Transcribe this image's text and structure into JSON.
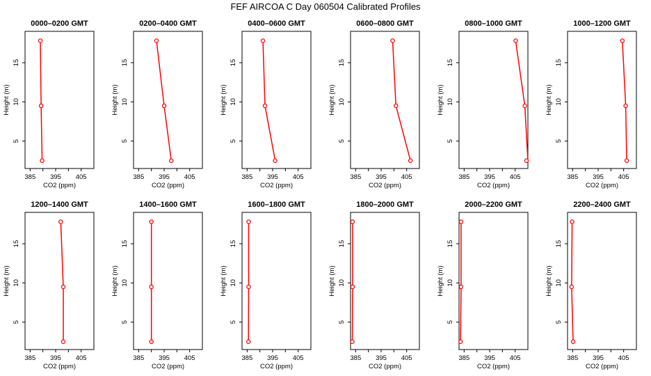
{
  "title": "FEF AIRCOA C  Day 060504  Calibrated Profiles",
  "colors": {
    "profile": "#ff0000",
    "axis": "#000000"
  },
  "chart_data": [
    {
      "type": "line",
      "title": "0000–0200 GMT",
      "xlabel": "CO2 (ppm)",
      "ylabel": "Height (m)",
      "xlim": [
        383,
        410
      ],
      "ylim": [
        1.5,
        19
      ],
      "xticks": [
        385,
        395,
        405
      ],
      "yticks": [
        5,
        10,
        15
      ],
      "x": [
        389.0,
        389.3,
        389.7
      ],
      "y": [
        17.8,
        9.5,
        2.5
      ]
    },
    {
      "type": "line",
      "title": "0200–0400 GMT",
      "xlabel": "CO2 (ppm)",
      "ylabel": "Height (m)",
      "xlim": [
        383,
        410
      ],
      "ylim": [
        1.5,
        19
      ],
      "xticks": [
        385,
        395,
        405
      ],
      "yticks": [
        5,
        10,
        15
      ],
      "x": [
        392.0,
        395.0,
        397.8
      ],
      "y": [
        17.8,
        9.5,
        2.5
      ]
    },
    {
      "type": "line",
      "title": "0400–0600 GMT",
      "xlabel": "CO2 (ppm)",
      "ylabel": "Height (m)",
      "xlim": [
        383,
        410
      ],
      "ylim": [
        1.5,
        19
      ],
      "xticks": [
        385,
        395,
        405
      ],
      "yticks": [
        5,
        10,
        15
      ],
      "x": [
        391.2,
        392.0,
        396.0
      ],
      "y": [
        17.8,
        9.5,
        2.5
      ]
    },
    {
      "type": "line",
      "title": "0600–0800 GMT",
      "xlabel": "CO2 (ppm)",
      "ylabel": "Height (m)",
      "xlim": [
        383,
        410
      ],
      "ylim": [
        1.5,
        19
      ],
      "xticks": [
        385,
        395,
        405
      ],
      "yticks": [
        5,
        10,
        15
      ],
      "x": [
        399.5,
        400.8,
        406.5
      ],
      "y": [
        17.8,
        9.5,
        2.5
      ]
    },
    {
      "type": "line",
      "title": "0800–1000 GMT",
      "xlabel": "CO2 (ppm)",
      "ylabel": "Height (m)",
      "xlim": [
        383,
        410
      ],
      "ylim": [
        1.5,
        19
      ],
      "xticks": [
        385,
        395,
        405
      ],
      "yticks": [
        5,
        10,
        15
      ],
      "x": [
        405.2,
        408.8,
        411.0
      ],
      "y": [
        17.8,
        9.5,
        2.5
      ]
    },
    {
      "type": "line",
      "title": "1000–1200 GMT",
      "xlabel": "CO2 (ppm)",
      "ylabel": "Height (m)",
      "xlim": [
        383,
        410
      ],
      "ylim": [
        1.5,
        19
      ],
      "xticks": [
        385,
        395,
        405
      ],
      "yticks": [
        5,
        10,
        15
      ],
      "x": [
        404.5,
        405.8,
        406.2
      ],
      "y": [
        17.8,
        9.5,
        2.5
      ]
    },
    {
      "type": "line",
      "title": "1200–1400 GMT",
      "xlabel": "CO2 (ppm)",
      "ylabel": "Height (m)",
      "xlim": [
        383,
        410
      ],
      "ylim": [
        1.5,
        19
      ],
      "xticks": [
        385,
        395,
        405
      ],
      "yticks": [
        5,
        10,
        15
      ],
      "x": [
        397.0,
        398.0,
        398.0
      ],
      "y": [
        17.8,
        9.5,
        2.5
      ]
    },
    {
      "type": "line",
      "title": "1400–1600 GMT",
      "xlabel": "CO2 (ppm)",
      "ylabel": "Height (m)",
      "xlim": [
        383,
        410
      ],
      "ylim": [
        1.5,
        19
      ],
      "xticks": [
        385,
        395,
        405
      ],
      "yticks": [
        5,
        10,
        15
      ],
      "x": [
        390.0,
        390.0,
        390.0
      ],
      "y": [
        17.8,
        9.5,
        2.5
      ]
    },
    {
      "type": "line",
      "title": "1600–1800 GMT",
      "xlabel": "CO2 (ppm)",
      "ylabel": "Height (m)",
      "xlim": [
        383,
        410
      ],
      "ylim": [
        1.5,
        19
      ],
      "xticks": [
        385,
        395,
        405
      ],
      "yticks": [
        5,
        10,
        15
      ],
      "x": [
        385.6,
        385.6,
        385.5
      ],
      "y": [
        17.8,
        9.5,
        2.5
      ]
    },
    {
      "type": "line",
      "title": "1800–2000 GMT",
      "xlabel": "CO2 (ppm)",
      "ylabel": "Height (m)",
      "xlim": [
        383,
        410
      ],
      "ylim": [
        1.5,
        19
      ],
      "xticks": [
        385,
        395,
        405
      ],
      "yticks": [
        5,
        10,
        15
      ],
      "x": [
        383.8,
        383.8,
        383.7
      ],
      "y": [
        17.8,
        9.5,
        2.5
      ]
    },
    {
      "type": "line",
      "title": "2000–2200 GMT",
      "xlabel": "CO2 (ppm)",
      "ylabel": "Height (m)",
      "xlim": [
        383,
        410
      ],
      "ylim": [
        1.5,
        19
      ],
      "xticks": [
        385,
        395,
        405
      ],
      "yticks": [
        5,
        10,
        15
      ],
      "x": [
        383.8,
        383.8,
        383.6
      ],
      "y": [
        17.8,
        9.5,
        2.5
      ]
    },
    {
      "type": "line",
      "title": "2200–2400 GMT",
      "xlabel": "CO2 (ppm)",
      "ylabel": "Height (m)",
      "xlim": [
        383,
        410
      ],
      "ylim": [
        1.5,
        19
      ],
      "xticks": [
        385,
        395,
        405
      ],
      "yticks": [
        5,
        10,
        15
      ],
      "x": [
        384.8,
        384.6,
        385.2
      ],
      "y": [
        17.8,
        9.5,
        2.5
      ]
    }
  ]
}
